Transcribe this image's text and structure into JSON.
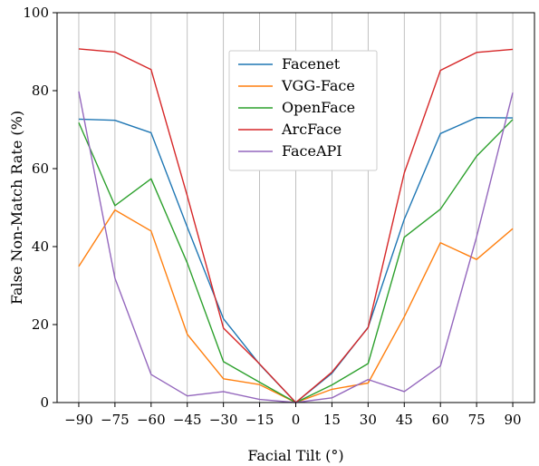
{
  "chart_data": {
    "type": "line",
    "xlabel": "Facial Tilt (°)",
    "ylabel": "False Non-Match Rate (%)",
    "x": [
      -90,
      -75,
      -60,
      -45,
      -30,
      -15,
      0,
      15,
      30,
      45,
      60,
      75,
      90
    ],
    "x_tick_labels": [
      "−90",
      "−75",
      "−60",
      "−45",
      "−30",
      "−15",
      "0",
      "15",
      "30",
      "45",
      "60",
      "75",
      "90"
    ],
    "xlim": [
      -99,
      99
    ],
    "ylim": [
      0,
      100
    ],
    "y_ticks": [
      0,
      20,
      40,
      60,
      80,
      100
    ],
    "grid": "vertical",
    "legend_position": "top-center",
    "series": [
      {
        "name": "Facenet",
        "color": "#1f77b4",
        "values": [
          72.7,
          72.4,
          69.2,
          45.0,
          21.5,
          9.8,
          0,
          7.5,
          19.3,
          47.0,
          69.0,
          73.1,
          73.0
        ]
      },
      {
        "name": "VGG-Face",
        "color": "#ff7f0e",
        "values": [
          34.9,
          49.4,
          44.0,
          17.5,
          6.1,
          4.6,
          0,
          3.4,
          5.0,
          22.0,
          41.0,
          36.7,
          44.6
        ]
      },
      {
        "name": "OpenFace",
        "color": "#2ca02c",
        "values": [
          71.8,
          50.5,
          57.4,
          35.8,
          10.5,
          5.2,
          0,
          4.5,
          10.0,
          42.4,
          49.6,
          63.2,
          72.6
        ]
      },
      {
        "name": "ArcFace",
        "color": "#d62728",
        "values": [
          90.7,
          89.9,
          85.4,
          53.0,
          19.1,
          9.9,
          0,
          7.8,
          19.2,
          58.9,
          85.2,
          89.8,
          90.6
        ]
      },
      {
        "name": "FaceAPI",
        "color": "#9467bd",
        "values": [
          79.8,
          31.9,
          7.2,
          1.7,
          2.8,
          0.8,
          0,
          1.2,
          5.9,
          2.8,
          9.4,
          42.5,
          79.5
        ]
      }
    ]
  }
}
